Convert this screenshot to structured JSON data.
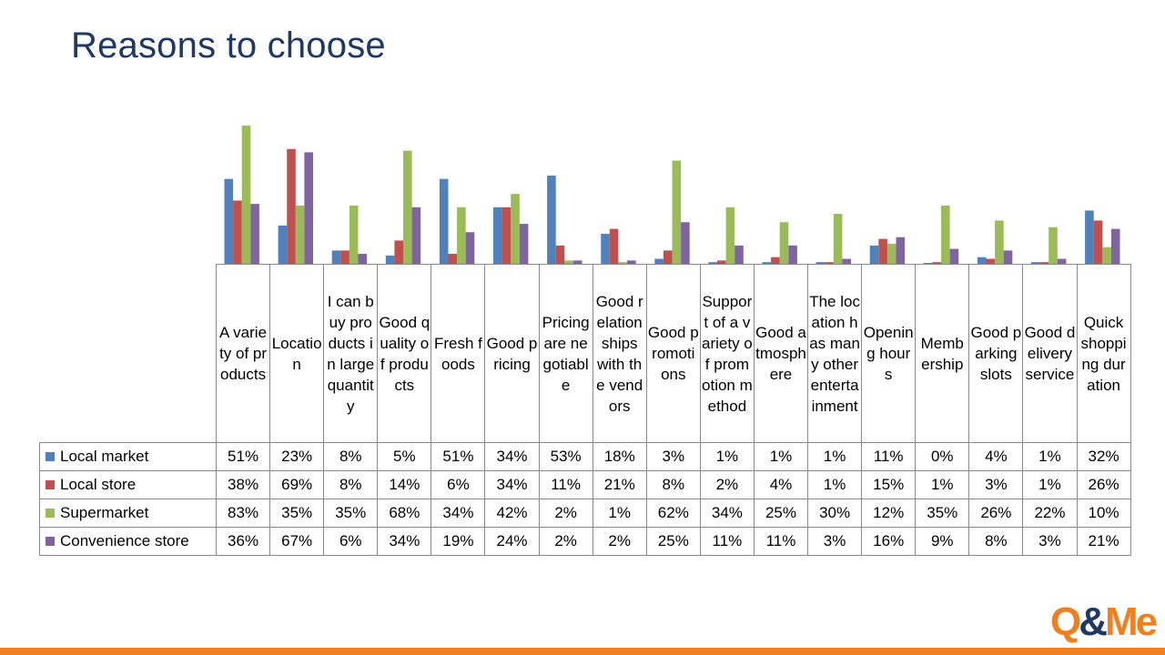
{
  "slide": {
    "title": "Reasons to choose",
    "logo": "Q&Me"
  },
  "colors": {
    "title": "#1F3864",
    "accent_bar": "#F07F1F",
    "logo_orange": "#F07F1F",
    "logo_navy": "#1F3864"
  },
  "chart_data": {
    "type": "bar",
    "ylim": [
      0,
      100
    ],
    "grid": false,
    "legend": "data-table",
    "categories": [
      "A variety of products",
      "Location",
      "I can buy products in large quantity",
      "Good quality of products",
      "Fresh foods",
      "Good pricing",
      "Pricing are negotiable",
      "Good relationships with the vendors",
      "Good promotions",
      "Support of a variety of promotion method",
      "Good atmosphere",
      "The location has many other entertainment",
      "Opening hours",
      "Membership",
      "Good parking slots",
      "Good delivery service",
      "Quick shopping duration"
    ],
    "series": [
      {
        "name": "Local market",
        "color": "#4F81BD",
        "values": [
          51,
          23,
          8,
          5,
          51,
          34,
          53,
          18,
          3,
          1,
          1,
          1,
          11,
          0,
          4,
          1,
          32
        ]
      },
      {
        "name": "Local store",
        "color": "#C0504D",
        "values": [
          38,
          69,
          8,
          14,
          6,
          34,
          11,
          21,
          8,
          2,
          4,
          1,
          15,
          1,
          3,
          1,
          26
        ]
      },
      {
        "name": "Supermarket",
        "color": "#9BBB59",
        "values": [
          83,
          35,
          35,
          68,
          34,
          42,
          2,
          1,
          62,
          34,
          25,
          30,
          12,
          35,
          26,
          22,
          10
        ]
      },
      {
        "name": "Convenience store",
        "color": "#8064A2",
        "values": [
          36,
          67,
          6,
          34,
          19,
          24,
          2,
          2,
          25,
          11,
          11,
          3,
          16,
          9,
          8,
          3,
          21
        ]
      }
    ]
  }
}
